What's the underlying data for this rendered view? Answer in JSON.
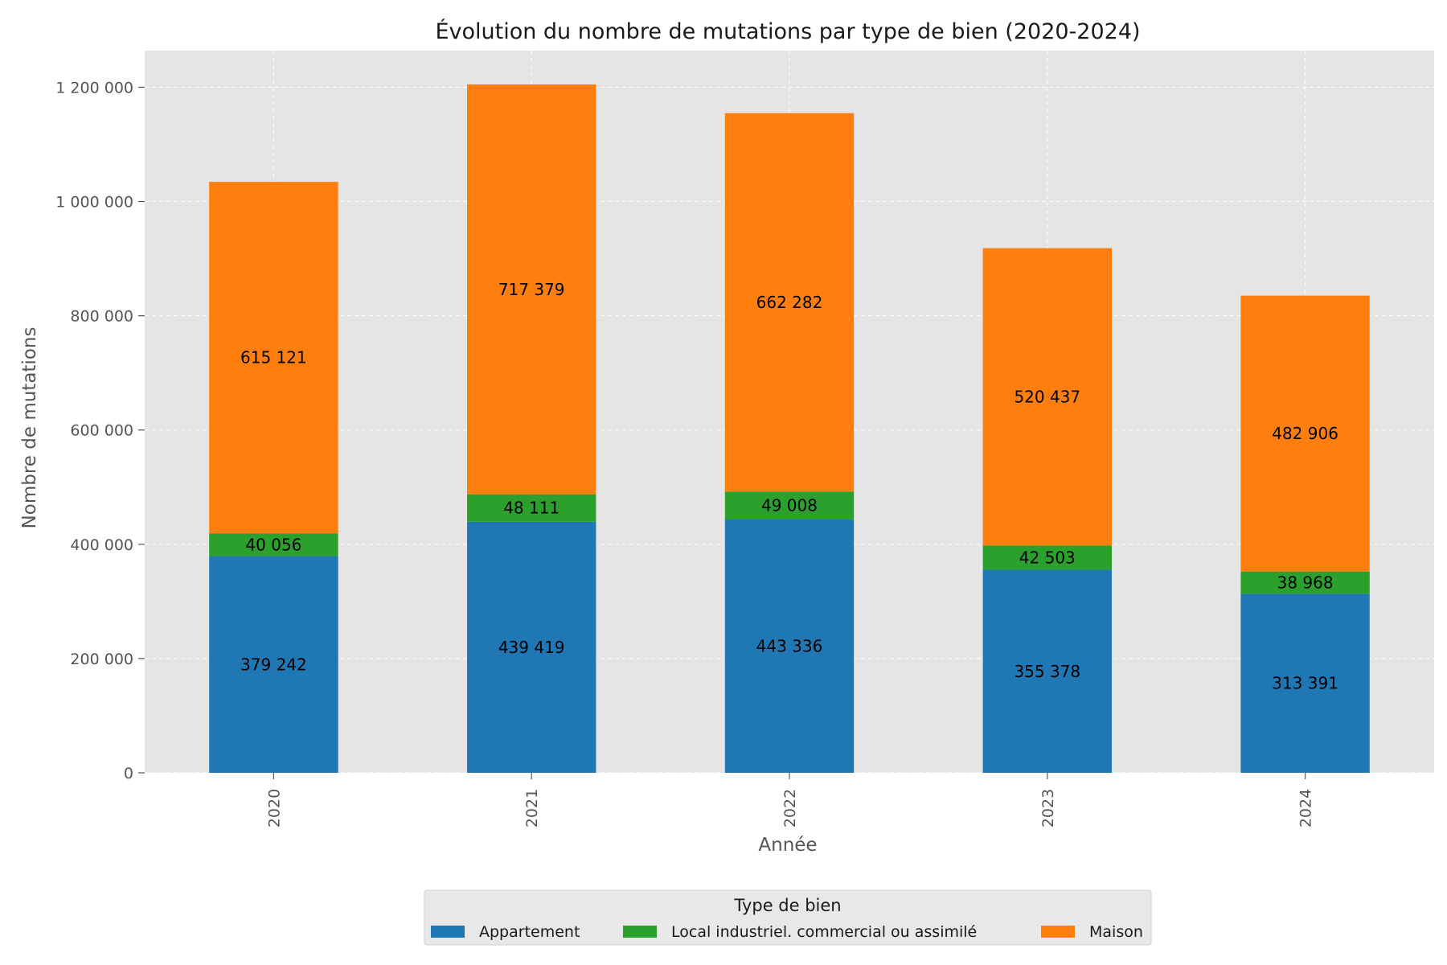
{
  "chart_data": {
    "type": "bar",
    "stacked": true,
    "title": "Évolution du nombre de mutations par type de bien (2020-2024)",
    "xlabel": "Année",
    "ylabel": "Nombre de mutations",
    "categories": [
      "2020",
      "2021",
      "2022",
      "2023",
      "2024"
    ],
    "series": [
      {
        "name": "Appartement",
        "color": "#1f77b4",
        "values": [
          379242,
          439419,
          443336,
          355378,
          313391
        ],
        "labels": [
          "379 242",
          "439 419",
          "443 336",
          "355 378",
          "313 391"
        ]
      },
      {
        "name": "Local industriel. commercial ou assimilé",
        "color": "#2ca02c",
        "values": [
          40056,
          48111,
          49008,
          42503,
          38968
        ],
        "labels": [
          "40 056",
          "48 111",
          "49 008",
          "42 503",
          "38 968"
        ]
      },
      {
        "name": "Maison",
        "color": "#ff7f0e",
        "values": [
          615121,
          717379,
          662282,
          520437,
          482906
        ],
        "labels": [
          "615 121",
          "717 379",
          "662 282",
          "520 437",
          "482 906"
        ]
      }
    ],
    "ylim": [
      0,
      1264000
    ],
    "yticks": [
      0,
      200000,
      400000,
      600000,
      800000,
      1000000,
      1200000
    ],
    "ytick_labels": [
      "0",
      "200 000",
      "400 000",
      "600 000",
      "800 000",
      "1 000 000",
      "1 200 000"
    ],
    "grid": true,
    "legend": {
      "title": "Type de bien",
      "position": "bottom-center"
    },
    "background": "#e5e5e5"
  }
}
